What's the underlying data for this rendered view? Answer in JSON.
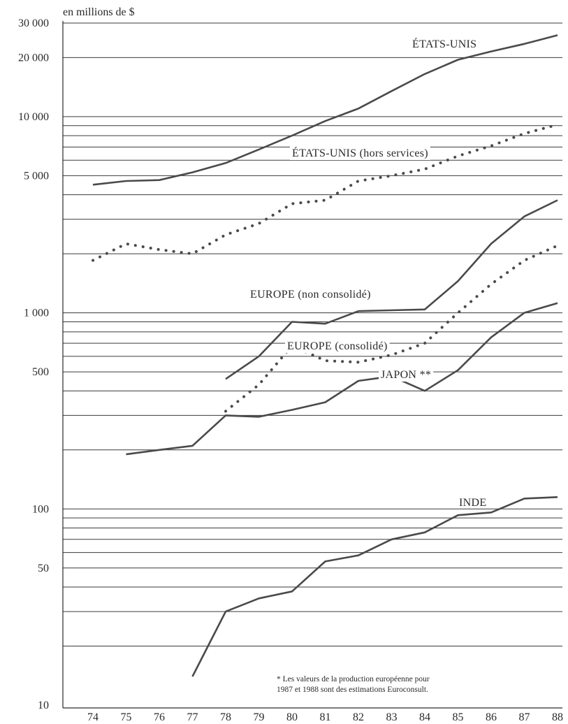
{
  "chart_data": {
    "type": "line",
    "scale": "log",
    "ylabel": "en millions de $",
    "y_ticks": [
      {
        "value": 10,
        "label": "10"
      },
      {
        "value": 50,
        "label": "50"
      },
      {
        "value": 100,
        "label": "100"
      },
      {
        "value": 500,
        "label": "500"
      },
      {
        "value": 1000,
        "label": "1 000"
      },
      {
        "value": 5000,
        "label": "5 000"
      },
      {
        "value": 10000,
        "label": "10 000"
      },
      {
        "value": 20000,
        "label": "20 000"
      },
      {
        "value": 30000,
        "label": "30 000"
      }
    ],
    "ylim": [
      10,
      30000
    ],
    "x_ticks": [
      "74",
      "75",
      "76",
      "77",
      "78",
      "79",
      "80",
      "81",
      "82",
      "83",
      "84",
      "85",
      "86",
      "87",
      "88"
    ],
    "xlim": [
      74,
      88
    ],
    "grid": true,
    "series": [
      {
        "name": "ÉTATS-UNIS",
        "style": "solid",
        "x": [
          74,
          75,
          76,
          77,
          78,
          79,
          80,
          81,
          82,
          83,
          84,
          85,
          86,
          87,
          88
        ],
        "y": [
          4500,
          4700,
          4750,
          5200,
          5800,
          6800,
          8000,
          9500,
          11000,
          13500,
          16500,
          19500,
          21500,
          23500,
          26000
        ]
      },
      {
        "name": "ÉTATS-UNIS (hors services)",
        "style": "dotted",
        "x": [
          74,
          75,
          76,
          77,
          78,
          79,
          80,
          81,
          82,
          83,
          84,
          85,
          86,
          87,
          88
        ],
        "y": [
          1850,
          2250,
          2100,
          2000,
          2500,
          2850,
          3600,
          3750,
          4700,
          5000,
          5400,
          6300,
          7100,
          8200,
          9100
        ]
      },
      {
        "name": "EUROPE (non consolidé)",
        "style": "solid",
        "x": [
          78,
          79,
          80,
          81,
          82,
          83,
          84,
          85,
          86,
          87,
          88
        ],
        "y": [
          460,
          600,
          900,
          880,
          1020,
          1030,
          1040,
          1450,
          2250,
          3100,
          3750
        ]
      },
      {
        "name": "EUROPE (consolidé)",
        "style": "dotted",
        "x": [
          78,
          79,
          80,
          81,
          82,
          83,
          84,
          85,
          86,
          87,
          88
        ],
        "y": [
          315,
          430,
          680,
          570,
          560,
          610,
          700,
          1000,
          1400,
          1850,
          2200
        ]
      },
      {
        "name": "JAPON **",
        "style": "solid",
        "x": [
          75,
          76,
          77,
          78,
          79,
          80,
          81,
          82,
          83,
          84,
          85,
          86,
          87,
          88
        ],
        "y": [
          190,
          200,
          210,
          300,
          295,
          320,
          350,
          450,
          475,
          400,
          510,
          750,
          1000,
          1120
        ]
      },
      {
        "name": "INDE",
        "style": "solid",
        "x": [
          77,
          78,
          79,
          80,
          81,
          82,
          83,
          84,
          85,
          86,
          87,
          88
        ],
        "y": [
          14,
          30,
          35,
          38,
          54,
          58,
          70,
          76,
          93,
          96,
          113,
          115
        ]
      }
    ],
    "note": {
      "line1": "* Les valeurs de la production européenne pour",
      "line2": "1987 et 1988 sont des estimations Euroconsult."
    }
  }
}
